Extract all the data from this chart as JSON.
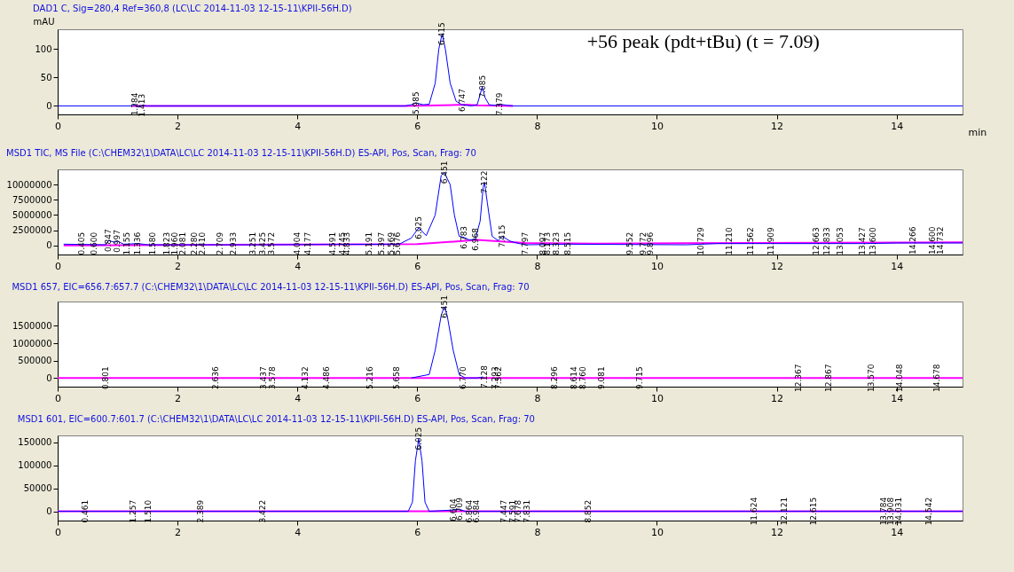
{
  "chart_data": [
    {
      "type": "line",
      "title": "DAD1 C, Sig=280,4 Ref=360,8 (LC\\LC 2014-11-03 12-15-11\\KPII-56H.D)",
      "xlabel": "min",
      "ylabel": "mAU",
      "xlim": [
        0,
        15.1
      ],
      "xticks": [
        0,
        2,
        4,
        6,
        8,
        10,
        12,
        14
      ],
      "ylim": [
        -15,
        135
      ],
      "yticks": [
        0,
        50,
        100
      ],
      "series": [
        {
          "color": "#0000ff",
          "x": [
            0,
            1.25,
            1.3,
            1.35,
            1.42,
            1.5,
            5.8,
            5.9,
            5.985,
            6.1,
            6.2,
            6.3,
            6.36,
            6.415,
            6.47,
            6.55,
            6.65,
            6.747,
            6.9,
            7.0,
            7.05,
            7.085,
            7.13,
            7.2,
            7.3,
            7.379,
            7.5,
            7.6,
            15.1
          ],
          "values": [
            0,
            0,
            3,
            -2,
            1,
            0,
            0,
            2,
            5,
            2,
            3,
            40,
            100,
            127,
            100,
            40,
            8,
            2,
            0,
            2,
            20,
            34,
            15,
            2,
            1,
            3,
            1,
            0,
            0
          ]
        },
        {
          "color": "#ff00ff",
          "x": [
            1.25,
            1.5,
            5.8,
            6.8,
            7.0,
            7.6
          ],
          "values": [
            0,
            0,
            0,
            2,
            1,
            0
          ]
        }
      ],
      "annotations": [
        {
          "text": "1.284",
          "x": 1.284,
          "y": 3
        },
        {
          "text": "1.413",
          "x": 1.413,
          "y": 1
        },
        {
          "text": "5.985",
          "x": 5.985,
          "y": 5
        },
        {
          "text": "6.415",
          "x": 6.415,
          "y": 127
        },
        {
          "text": "6.747",
          "x": 6.747,
          "y": 10
        },
        {
          "text": "7.085",
          "x": 7.085,
          "y": 34
        },
        {
          "text": "7.379",
          "x": 7.379,
          "y": 3
        },
        "+56 peak (pdt+tBu) (t = 7.09)"
      ]
    },
    {
      "type": "line",
      "title": "MSD1 TIC, MS File (C:\\CHEM32\\1\\DATA\\LC\\LC 2014-11-03 12-15-11\\KPII-56H.D)    ES-API, Pos, Scan, Frag: 70",
      "xlim": [
        0,
        15.1
      ],
      "xticks": [
        0,
        2,
        4,
        6,
        8,
        10,
        12,
        14
      ],
      "ylim": [
        -1500000,
        12500000
      ],
      "yticks": [
        0,
        2500000,
        5000000,
        7500000,
        10000000
      ],
      "series": [
        {
          "color": "#0000ff",
          "x": [
            0.1,
            0.8,
            0.85,
            0.95,
            1.0,
            1.1,
            1.35,
            1.5,
            3.3,
            5.7,
            5.9,
            6.025,
            6.15,
            6.3,
            6.4,
            6.451,
            6.55,
            6.62,
            6.7,
            6.783,
            6.87,
            6.968,
            7.05,
            7.1,
            7.122,
            7.17,
            7.25,
            7.35,
            7.415,
            7.55,
            7.7,
            7.797,
            8.5,
            10.5,
            11.0,
            13.5,
            14.0,
            15.1
          ],
          "values": [
            200000,
            100000,
            800000,
            500000,
            700000,
            200000,
            300000,
            100000,
            100000,
            200000,
            1200000,
            2900000,
            1600000,
            5000000,
            11500000,
            12000000,
            10000000,
            5000000,
            1500000,
            1300000,
            900000,
            1000000,
            4000000,
            9500000,
            10400000,
            7000000,
            1500000,
            800000,
            1500000,
            700000,
            300000,
            100000,
            200000,
            100000,
            300000,
            300000,
            400000,
            400000
          ]
        },
        {
          "color": "#ff00ff",
          "x": [
            0.1,
            6.0,
            7.0,
            7.8,
            9.0,
            15.1
          ],
          "values": [
            0,
            200000,
            900000,
            400000,
            300000,
            500000
          ]
        }
      ],
      "annotations": [
        {
          "text": "0.405",
          "x": 0.405,
          "y": 300000
        },
        {
          "text": "0.600",
          "x": 0.6,
          "y": 300000
        },
        {
          "text": "0.847",
          "x": 0.847,
          "y": 800000
        },
        {
          "text": "0.997",
          "x": 0.997,
          "y": 700000
        },
        {
          "text": "1.155",
          "x": 1.155,
          "y": 300000
        },
        {
          "text": "1.336",
          "x": 1.336,
          "y": 300000
        },
        {
          "text": "1.580",
          "x": 1.58,
          "y": 300000
        },
        {
          "text": "1.823",
          "x": 1.823,
          "y": 300000
        },
        {
          "text": "1.960",
          "x": 1.96,
          "y": 300000
        },
        {
          "text": "2.081",
          "x": 2.081,
          "y": 300000
        },
        {
          "text": "2.280",
          "x": 2.28,
          "y": 300000
        },
        {
          "text": "2.410",
          "x": 2.41,
          "y": 300000
        },
        {
          "text": "2.709",
          "x": 2.709,
          "y": 300000
        },
        {
          "text": "2.933",
          "x": 2.933,
          "y": 300000
        },
        {
          "text": "3.251",
          "x": 3.251,
          "y": 300000
        },
        {
          "text": "3.425",
          "x": 3.425,
          "y": 300000
        },
        {
          "text": "3.572",
          "x": 3.572,
          "y": 300000
        },
        {
          "text": "4.004",
          "x": 4.004,
          "y": 300000
        },
        {
          "text": "4.177",
          "x": 4.177,
          "y": 300000
        },
        {
          "text": "4.591",
          "x": 4.591,
          "y": 300000
        },
        {
          "text": "4.745",
          "x": 4.745,
          "y": 300000
        },
        {
          "text": "4.833",
          "x": 4.833,
          "y": 300000
        },
        {
          "text": "5.191",
          "x": 5.191,
          "y": 300000
        },
        {
          "text": "5.397",
          "x": 5.397,
          "y": 300000
        },
        {
          "text": "5.569",
          "x": 5.569,
          "y": 300000
        },
        {
          "text": "5.676",
          "x": 5.676,
          "y": 300000
        },
        {
          "text": "6.025",
          "x": 6.025,
          "y": 2900000
        },
        {
          "text": "6.451",
          "x": 6.451,
          "y": 12000000
        },
        {
          "text": "6.783",
          "x": 6.783,
          "y": 1300000
        },
        {
          "text": "6.968",
          "x": 6.968,
          "y": 1000000
        },
        {
          "text": "7.122",
          "x": 7.122,
          "y": 10400000
        },
        {
          "text": "7.415",
          "x": 7.415,
          "y": 1500000
        },
        {
          "text": "7.797",
          "x": 7.797,
          "y": 300000
        },
        {
          "text": "8.097",
          "x": 8.097,
          "y": 300000
        },
        {
          "text": "8.173",
          "x": 8.173,
          "y": 300000
        },
        {
          "text": "8.323",
          "x": 8.323,
          "y": 300000
        },
        {
          "text": "8.515",
          "x": 8.515,
          "y": 300000
        },
        {
          "text": "9.552",
          "x": 9.552,
          "y": 300000
        },
        {
          "text": "9.772",
          "x": 9.772,
          "y": 300000
        },
        {
          "text": "9.896",
          "x": 9.896,
          "y": 300000
        },
        {
          "text": "10.729",
          "x": 10.729,
          "y": 700000
        },
        {
          "text": "11.210",
          "x": 11.21,
          "y": 700000
        },
        {
          "text": "11.562",
          "x": 11.562,
          "y": 700000
        },
        {
          "text": "11.909",
          "x": 11.909,
          "y": 700000
        },
        {
          "text": "12.663",
          "x": 12.663,
          "y": 700000
        },
        {
          "text": "12.833",
          "x": 12.833,
          "y": 700000
        },
        {
          "text": "13.053",
          "x": 13.053,
          "y": 700000
        },
        {
          "text": "13.427",
          "x": 13.427,
          "y": 700000
        },
        {
          "text": "13.600",
          "x": 13.6,
          "y": 700000
        },
        {
          "text": "14.266",
          "x": 14.266,
          "y": 800000
        },
        {
          "text": "14.600",
          "x": 14.6,
          "y": 800000
        },
        {
          "text": "14.732",
          "x": 14.732,
          "y": 800000
        }
      ]
    },
    {
      "type": "line",
      "title": "MSD1 657, EIC=656.7:657.7 (C:\\CHEM32\\1\\DATA\\LC\\LC 2014-11-03 12-15-11\\KPII-56H.D)    ES-API, Pos, Scan, Frag: 70",
      "xlim": [
        0,
        15.1
      ],
      "xticks": [
        0,
        2,
        4,
        6,
        8,
        10,
        12,
        14
      ],
      "ylim": [
        -250000,
        2200000
      ],
      "yticks": [
        0,
        500000,
        1000000,
        1500000
      ],
      "series": [
        {
          "color": "#0000ff",
          "x": [
            5.9,
            6.2,
            6.3,
            6.4,
            6.451,
            6.5,
            6.6,
            6.7,
            6.8,
            7.0,
            7.1
          ],
          "values": [
            0,
            100000,
            800000,
            1800000,
            2050000,
            1800000,
            800000,
            100000,
            0,
            0,
            30000
          ]
        },
        {
          "color": "#ff00ff",
          "x": [
            0,
            15.1
          ],
          "values": [
            0,
            0
          ]
        }
      ],
      "annotations": [
        {
          "text": "0.801",
          "x": 0.801,
          "y": 0
        },
        {
          "text": "2.636",
          "x": 2.636,
          "y": 0
        },
        {
          "text": "3.437",
          "x": 3.437,
          "y": 0
        },
        {
          "text": "3.578",
          "x": 3.578,
          "y": 0
        },
        {
          "text": "4.132",
          "x": 4.132,
          "y": 0
        },
        {
          "text": "4.486",
          "x": 4.486,
          "y": 0
        },
        {
          "text": "5.216",
          "x": 5.216,
          "y": 0
        },
        {
          "text": "5.658",
          "x": 5.658,
          "y": 0
        },
        {
          "text": "6.451",
          "x": 6.451,
          "y": 2050000
        },
        {
          "text": "6.770",
          "x": 6.77,
          "y": 0
        },
        {
          "text": "7.128",
          "x": 7.128,
          "y": 30000
        },
        {
          "text": "7.293",
          "x": 7.293,
          "y": 0
        },
        {
          "text": "7.362",
          "x": 7.362,
          "y": 0
        },
        {
          "text": "8.296",
          "x": 8.296,
          "y": 0
        },
        {
          "text": "8.614",
          "x": 8.614,
          "y": 0
        },
        {
          "text": "8.760",
          "x": 8.76,
          "y": 0
        },
        {
          "text": "9.081",
          "x": 9.081,
          "y": 0
        },
        {
          "text": "9.715",
          "x": 9.715,
          "y": 0
        },
        {
          "text": "12.367",
          "x": 12.367,
          "y": 0
        },
        {
          "text": "12.867",
          "x": 12.867,
          "y": 0
        },
        {
          "text": "13.570",
          "x": 13.57,
          "y": 0
        },
        {
          "text": "14.048",
          "x": 14.048,
          "y": 0
        },
        {
          "text": "14.678",
          "x": 14.678,
          "y": 0
        }
      ]
    },
    {
      "type": "line",
      "title": "MSD1 601, EIC=600.7:601.7 (C:\\CHEM32\\1\\DATA\\LC\\LC 2014-11-03 12-15-11\\KPII-56H.D)    ES-API, Pos, Scan, Frag: 70",
      "xlim": [
        0,
        15.1
      ],
      "xticks": [
        0,
        2,
        4,
        6,
        8,
        10,
        12,
        14
      ],
      "ylim": [
        -20000,
        165000
      ],
      "yticks": [
        0,
        50000,
        100000,
        150000
      ],
      "series": [
        {
          "color": "#0000ff",
          "x": [
            0,
            5.85,
            5.92,
            5.97,
            6.025,
            6.08,
            6.13,
            6.2,
            6.6,
            6.7,
            6.8,
            15.1
          ],
          "values": [
            0,
            0,
            20000,
            110000,
            158000,
            110000,
            20000,
            0,
            3000,
            5000,
            0,
            0
          ]
        },
        {
          "color": "#ff00ff",
          "x": [
            0,
            15.1
          ],
          "values": [
            0,
            0
          ]
        }
      ],
      "annotations": [
        {
          "text": "0.461",
          "x": 0.461,
          "y": 0
        },
        {
          "text": "1.257",
          "x": 1.257,
          "y": 0
        },
        {
          "text": "1.510",
          "x": 1.51,
          "y": 0
        },
        {
          "text": "2.389",
          "x": 2.389,
          "y": 0
        },
        {
          "text": "3.422",
          "x": 3.422,
          "y": 0
        },
        {
          "text": "6.025",
          "x": 6.025,
          "y": 158000
        },
        {
          "text": "6.604",
          "x": 6.604,
          "y": 3000
        },
        {
          "text": "6.709",
          "x": 6.709,
          "y": 5000
        },
        {
          "text": "6.864",
          "x": 6.864,
          "y": 0
        },
        {
          "text": "6.984",
          "x": 6.984,
          "y": 0
        },
        {
          "text": "7.447",
          "x": 7.447,
          "y": 0
        },
        {
          "text": "7.591",
          "x": 7.591,
          "y": 0
        },
        {
          "text": "7.678",
          "x": 7.678,
          "y": 0
        },
        {
          "text": "7.831",
          "x": 7.831,
          "y": 0
        },
        {
          "text": "8.852",
          "x": 8.852,
          "y": 0
        },
        {
          "text": "11.624",
          "x": 11.624,
          "y": 0
        },
        {
          "text": "12.121",
          "x": 12.121,
          "y": 0
        },
        {
          "text": "12.615",
          "x": 12.615,
          "y": 0
        },
        {
          "text": "13.784",
          "x": 13.784,
          "y": 0
        },
        {
          "text": "13.908",
          "x": 13.908,
          "y": 0
        },
        {
          "text": "14.031",
          "x": 14.031,
          "y": 0
        },
        {
          "text": "14.542",
          "x": 14.542,
          "y": 0
        }
      ]
    }
  ]
}
